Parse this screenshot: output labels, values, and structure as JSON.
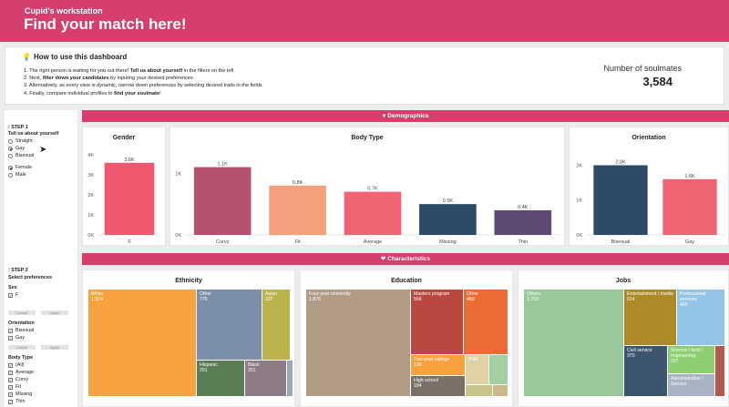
{
  "header": {
    "subtitle": "Cupid's workstation",
    "title": "Find your match here!"
  },
  "howto": {
    "title": "How to use this dashboard",
    "steps": [
      {
        "pre": "1. The right person is waiting for you out there! ",
        "bold": "Tell us about yourself",
        "post": " in the filters on the left"
      },
      {
        "pre": "2. Next, ",
        "bold": "filter down your candidates",
        "post": " by inputing your desired preferences"
      },
      {
        "pre": "3. Alternatively, as every view is dynamic, narrow down preferences by selecting desired traits in the fields",
        "bold": "",
        "post": ""
      },
      {
        "pre": "4. Finally, compare individual profiles to ",
        "bold": "find your soulmate",
        "post": "!"
      }
    ]
  },
  "kpi": {
    "label": "Number of soulmates",
    "value": "3,584"
  },
  "sidebar": {
    "step1_title": "STEP 1",
    "step1_sub": "Tell us about yourself",
    "orientation_opts": [
      {
        "label": "Straight",
        "checked": false
      },
      {
        "label": "Gay",
        "checked": true
      },
      {
        "label": "Bisexual",
        "checked": false
      }
    ],
    "sex_opts": [
      {
        "label": "Female",
        "checked": true
      },
      {
        "label": "Male",
        "checked": false
      }
    ],
    "step2_title": "STEP 2",
    "step2_sub": "Select preferences",
    "sex_label": "Sex",
    "sex_pref": [
      "F"
    ],
    "cancel": "Cancel",
    "apply": "Apply",
    "orientation_label": "Orientation",
    "orientation_pref": [
      "Bisexual",
      "Gay"
    ],
    "bodytype_label": "Body Type",
    "bodytype_pref": [
      "(All)",
      "Average",
      "Curvy",
      "Fit",
      "Missing",
      "Thin"
    ]
  },
  "banners": {
    "demographics": "Demographics",
    "characteristics": "Characteristics"
  },
  "charts": {
    "gender": {
      "title": "Gender"
    },
    "bodytype": {
      "title": "Body Type"
    },
    "orientation": {
      "title": "Orientation"
    },
    "ethnicity": {
      "title": "Ethnicity"
    },
    "education": {
      "title": "Education"
    },
    "jobs": {
      "title": "Jobs"
    }
  },
  "chart_data": [
    {
      "type": "bar",
      "title": "Gender",
      "categories": [
        "F"
      ],
      "values": [
        3600
      ],
      "labels": [
        "3.6K"
      ],
      "ylim": [
        0,
        4000
      ],
      "yticks": [
        "0K",
        "1K",
        "2K",
        "3K",
        "4K"
      ],
      "colors": [
        "#f0566e"
      ]
    },
    {
      "type": "bar",
      "title": "Body Type",
      "categories": [
        "Curvy",
        "Fit",
        "Average",
        "Missing",
        "Thin"
      ],
      "values": [
        1100,
        800,
        700,
        500,
        400
      ],
      "labels": [
        "1.1K",
        "0.8K",
        "0.7K",
        "0.5K",
        "0.4K"
      ],
      "ylim": [
        0,
        1300
      ],
      "yticks": [
        "0K",
        "1K"
      ],
      "colors": [
        "#b5536f",
        "#f5a07c",
        "#f06372",
        "#2d4a68",
        "#5e4a73"
      ]
    },
    {
      "type": "bar",
      "title": "Orientation",
      "categories": [
        "Bisexual",
        "Gay"
      ],
      "values": [
        2000,
        1600
      ],
      "labels": [
        "2.0K",
        "1.6K"
      ],
      "ylim": [
        0,
        2300
      ],
      "yticks": [
        "0K",
        "1K",
        "2K"
      ],
      "colors": [
        "#2d4a68",
        "#f06372"
      ]
    },
    {
      "type": "treemap",
      "title": "Ethnicity",
      "items": [
        {
          "label": "White",
          "value": 1914,
          "color": "#f7a23e"
        },
        {
          "label": "Other",
          "value": 776,
          "color": "#7b8fa8"
        },
        {
          "label": "Asian",
          "value": 337,
          "color": "#bcb24c"
        },
        {
          "label": "Hispanic",
          "value": 291,
          "color": "#5a7d55"
        },
        {
          "label": "Black",
          "value": 251,
          "color": "#8d7b87"
        }
      ]
    },
    {
      "type": "treemap",
      "title": "Education",
      "items": [
        {
          "label": "Four-year university",
          "value": 1875,
          "color": "#b09c86"
        },
        {
          "label": "Masters program",
          "value": 566,
          "color": "#b9483f"
        },
        {
          "label": "Other",
          "value": 480,
          "color": "#ed6b35"
        },
        {
          "label": "Two-year college",
          "value": 198,
          "color": "#f7a23e"
        },
        {
          "label": "PHD",
          "value": 0,
          "color": "#e0d3a3"
        },
        {
          "label": "High school",
          "value": 184,
          "color": "#7a7068"
        }
      ]
    },
    {
      "type": "treemap",
      "title": "Jobs",
      "items": [
        {
          "label": "Others",
          "value": 1763,
          "color": "#99c99b"
        },
        {
          "label": "Entertainment / media",
          "value": 514,
          "color": "#ac8a28"
        },
        {
          "label": "Professional services",
          "value": 466,
          "color": "#93c4e6"
        },
        {
          "label": "Civil service",
          "value": 370,
          "color": "#3e556e"
        },
        {
          "label": "Science / tech / engineering",
          "value": 227,
          "color": "#8ccf72"
        },
        {
          "label": "Administrative / Service",
          "value": 0,
          "color": "#a8b3c4"
        }
      ]
    }
  ]
}
